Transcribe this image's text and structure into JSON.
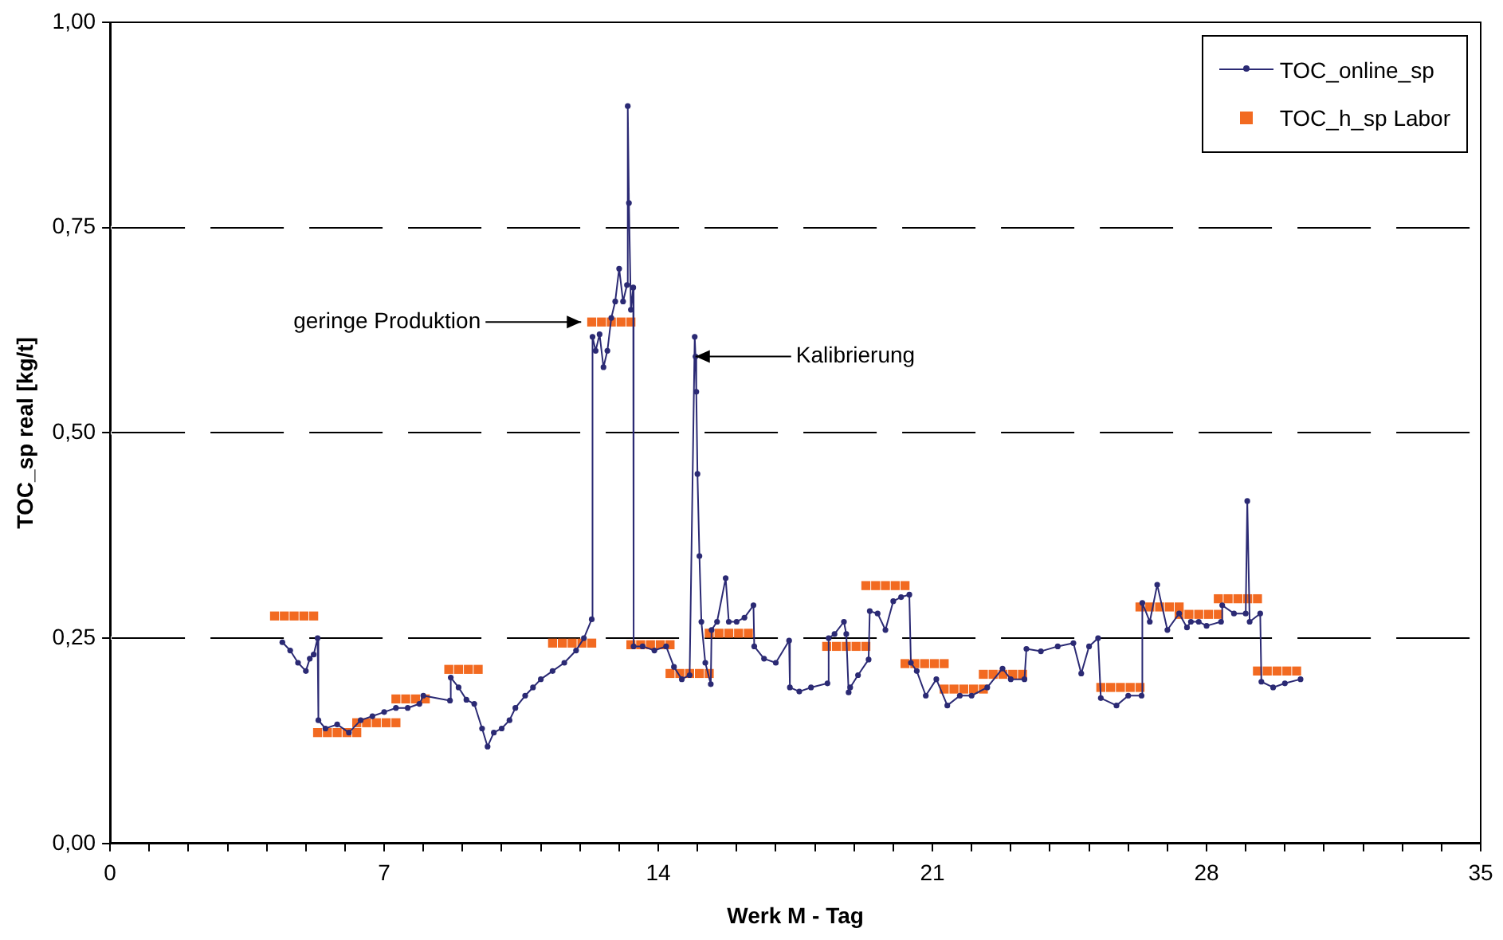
{
  "chart_data": {
    "type": "line",
    "xlabel": "Werk M - Tag",
    "ylabel": "TOC_sp real [kg/t]",
    "xlim": [
      0,
      35
    ],
    "xticks": [
      0,
      {
        "value": 1,
        "label": null
      },
      {
        "value": 2,
        "label": null
      },
      {
        "value": 3,
        "label": null
      },
      {
        "value": 4,
        "label": null
      },
      {
        "value": 5,
        "label": null
      },
      {
        "value": 6,
        "label": null
      },
      7,
      {
        "value": 8,
        "label": null
      },
      {
        "value": 9,
        "label": null
      },
      {
        "value": 10,
        "label": null
      },
      {
        "value": 11,
        "label": null
      },
      {
        "value": 12,
        "label": null
      },
      {
        "value": 13,
        "label": null
      },
      14,
      {
        "value": 15,
        "label": null
      },
      {
        "value": 16,
        "label": null
      },
      {
        "value": 17,
        "label": null
      },
      {
        "value": 18,
        "label": null
      },
      {
        "value": 19,
        "label": null
      },
      {
        "value": 20,
        "label": null
      },
      21,
      {
        "value": 22,
        "label": null
      },
      {
        "value": 23,
        "label": null
      },
      {
        "value": 24,
        "label": null
      },
      {
        "value": 25,
        "label": null
      },
      {
        "value": 26,
        "label": null
      },
      {
        "value": 27,
        "label": null
      },
      28,
      {
        "value": 29,
        "label": null
      },
      {
        "value": 30,
        "label": null
      },
      {
        "value": 31,
        "label": null
      },
      {
        "value": 32,
        "label": null
      },
      {
        "value": 33,
        "label": null
      },
      {
        "value": 34,
        "label": null
      },
      35
    ],
    "ylim": [
      0,
      1
    ],
    "yticks": [
      {
        "value": 0,
        "label": "0,00"
      },
      {
        "value": 0.25,
        "label": "0,25"
      },
      {
        "value": 0.5,
        "label": "0,50"
      },
      {
        "value": 0.75,
        "label": "0,75"
      },
      {
        "value": 1,
        "label": "1,00"
      }
    ],
    "grid": "y",
    "legend": "top right",
    "annotations": [
      {
        "text": "geringe Produktion",
        "x": 12.03,
        "y": 0.635
      },
      {
        "text": "Kalibrierung",
        "x": 14.95,
        "y": 0.593
      }
    ],
    "series": [
      {
        "name": "TOC_online_sp",
        "color": "#2b2a74",
        "marker": "circle",
        "line_style": "solid",
        "x": [
          4.4,
          4.6,
          4.8,
          5.0,
          5.1,
          5.2,
          5.3,
          5.32,
          5.5,
          5.8,
          6.1,
          6.4,
          6.7,
          7.0,
          7.3,
          7.6,
          7.9,
          8.0,
          8.68,
          8.7,
          8.9,
          9.1,
          9.3,
          9.5,
          9.64,
          9.8,
          10.0,
          10.2,
          10.35,
          10.6,
          10.8,
          11.0,
          11.3,
          11.6,
          11.9,
          12.1,
          12.3,
          12.32,
          12.4,
          12.5,
          12.6,
          12.7,
          12.8,
          12.9,
          13.0,
          13.1,
          13.2,
          13.22,
          13.25,
          13.3,
          13.36,
          13.37,
          13.6,
          13.9,
          14.2,
          14.4,
          14.6,
          14.8,
          14.93,
          14.95,
          14.97,
          15.0,
          15.05,
          15.1,
          15.2,
          15.34,
          15.36,
          15.5,
          15.72,
          15.8,
          16.0,
          16.2,
          16.43,
          16.45,
          16.7,
          17.0,
          17.34,
          17.36,
          17.6,
          17.9,
          18.32,
          18.35,
          18.5,
          18.74,
          18.8,
          18.86,
          18.9,
          19.1,
          19.37,
          19.4,
          19.6,
          19.8,
          20.0,
          20.2,
          20.41,
          20.45,
          20.6,
          20.83,
          21.1,
          21.38,
          21.7,
          22.0,
          22.4,
          22.79,
          23.0,
          23.35,
          23.4,
          23.77,
          24.2,
          24.6,
          24.8,
          25.0,
          25.23,
          25.3,
          25.7,
          26.0,
          26.34,
          26.36,
          26.55,
          26.74,
          27.0,
          27.3,
          27.5,
          27.6,
          27.8,
          28.0,
          28.37,
          28.4,
          28.7,
          29.0,
          29.04,
          29.1,
          29.37,
          29.4,
          29.7,
          30.0,
          30.4
        ],
        "values": [
          0.245,
          0.235,
          0.22,
          0.21,
          0.225,
          0.23,
          0.25,
          0.15,
          0.14,
          0.145,
          0.135,
          0.15,
          0.155,
          0.16,
          0.165,
          0.165,
          0.17,
          0.18,
          0.174,
          0.202,
          0.19,
          0.175,
          0.17,
          0.14,
          0.118,
          0.135,
          0.14,
          0.15,
          0.165,
          0.18,
          0.19,
          0.2,
          0.21,
          0.22,
          0.235,
          0.25,
          0.273,
          0.617,
          0.6,
          0.62,
          0.58,
          0.6,
          0.64,
          0.66,
          0.7,
          0.66,
          0.68,
          0.898,
          0.78,
          0.65,
          0.677,
          0.24,
          0.24,
          0.235,
          0.24,
          0.215,
          0.2,
          0.205,
          0.617,
          0.593,
          0.55,
          0.45,
          0.35,
          0.27,
          0.22,
          0.194,
          0.26,
          0.27,
          0.323,
          0.27,
          0.27,
          0.275,
          0.29,
          0.24,
          0.225,
          0.22,
          0.247,
          0.19,
          0.185,
          0.19,
          0.195,
          0.25,
          0.255,
          0.27,
          0.255,
          0.184,
          0.19,
          0.205,
          0.224,
          0.283,
          0.28,
          0.26,
          0.295,
          0.3,
          0.303,
          0.22,
          0.21,
          0.18,
          0.2,
          0.168,
          0.18,
          0.18,
          0.19,
          0.213,
          0.2,
          0.2,
          0.237,
          0.234,
          0.24,
          0.244,
          0.207,
          0.24,
          0.25,
          0.177,
          0.168,
          0.18,
          0.18,
          0.293,
          0.27,
          0.315,
          0.26,
          0.28,
          0.263,
          0.27,
          0.27,
          0.265,
          0.27,
          0.29,
          0.28,
          0.28,
          0.417,
          0.27,
          0.28,
          0.197,
          0.19,
          0.195,
          0.2
        ]
      },
      {
        "name": "TOC_h_sp Labor",
        "type": "scatter",
        "color": "#f26a21",
        "marker": "square",
        "x": [
          4.2,
          4.45,
          4.7,
          4.95,
          5.2,
          5.3,
          5.55,
          5.8,
          6.05,
          6.3,
          6.3,
          6.55,
          6.8,
          7.05,
          7.3,
          7.3,
          7.55,
          7.8,
          8.05,
          8.65,
          8.9,
          9.15,
          9.4,
          11.3,
          11.55,
          11.8,
          12.05,
          12.3,
          12.3,
          12.55,
          12.8,
          13.05,
          13.3,
          13.3,
          13.55,
          13.8,
          14.05,
          14.3,
          14.3,
          14.55,
          14.8,
          15.05,
          15.3,
          15.3,
          15.55,
          15.8,
          16.05,
          16.3,
          18.3,
          18.55,
          18.8,
          19.05,
          19.3,
          19.3,
          19.55,
          19.8,
          20.05,
          20.3,
          20.3,
          20.55,
          20.8,
          21.05,
          21.3,
          21.3,
          21.55,
          21.8,
          22.05,
          22.3,
          22.3,
          22.55,
          22.8,
          23.05,
          23.3,
          25.3,
          25.55,
          25.8,
          26.05,
          26.3,
          26.3,
          26.55,
          26.8,
          27.05,
          27.3,
          27.3,
          27.55,
          27.8,
          28.05,
          28.3,
          28.3,
          28.55,
          28.8,
          29.05,
          29.3,
          29.3,
          29.55,
          29.8,
          30.05,
          30.3
        ],
        "values": [
          0.277,
          0.277,
          0.277,
          0.277,
          0.277,
          0.135,
          0.135,
          0.135,
          0.135,
          0.135,
          0.147,
          0.147,
          0.147,
          0.147,
          0.147,
          0.176,
          0.176,
          0.176,
          0.176,
          0.212,
          0.212,
          0.212,
          0.212,
          0.244,
          0.244,
          0.244,
          0.244,
          0.244,
          0.635,
          0.635,
          0.635,
          0.635,
          0.635,
          0.242,
          0.242,
          0.242,
          0.242,
          0.242,
          0.207,
          0.207,
          0.207,
          0.207,
          0.207,
          0.256,
          0.256,
          0.256,
          0.256,
          0.256,
          0.24,
          0.24,
          0.24,
          0.24,
          0.24,
          0.314,
          0.314,
          0.314,
          0.314,
          0.314,
          0.219,
          0.219,
          0.219,
          0.219,
          0.219,
          0.188,
          0.188,
          0.188,
          0.188,
          0.188,
          0.206,
          0.206,
          0.206,
          0.206,
          0.206,
          0.19,
          0.19,
          0.19,
          0.19,
          0.19,
          0.288,
          0.288,
          0.288,
          0.288,
          0.288,
          0.279,
          0.279,
          0.279,
          0.279,
          0.279,
          0.298,
          0.298,
          0.298,
          0.298,
          0.298,
          0.21,
          0.21,
          0.21,
          0.21,
          0.21
        ]
      }
    ]
  }
}
